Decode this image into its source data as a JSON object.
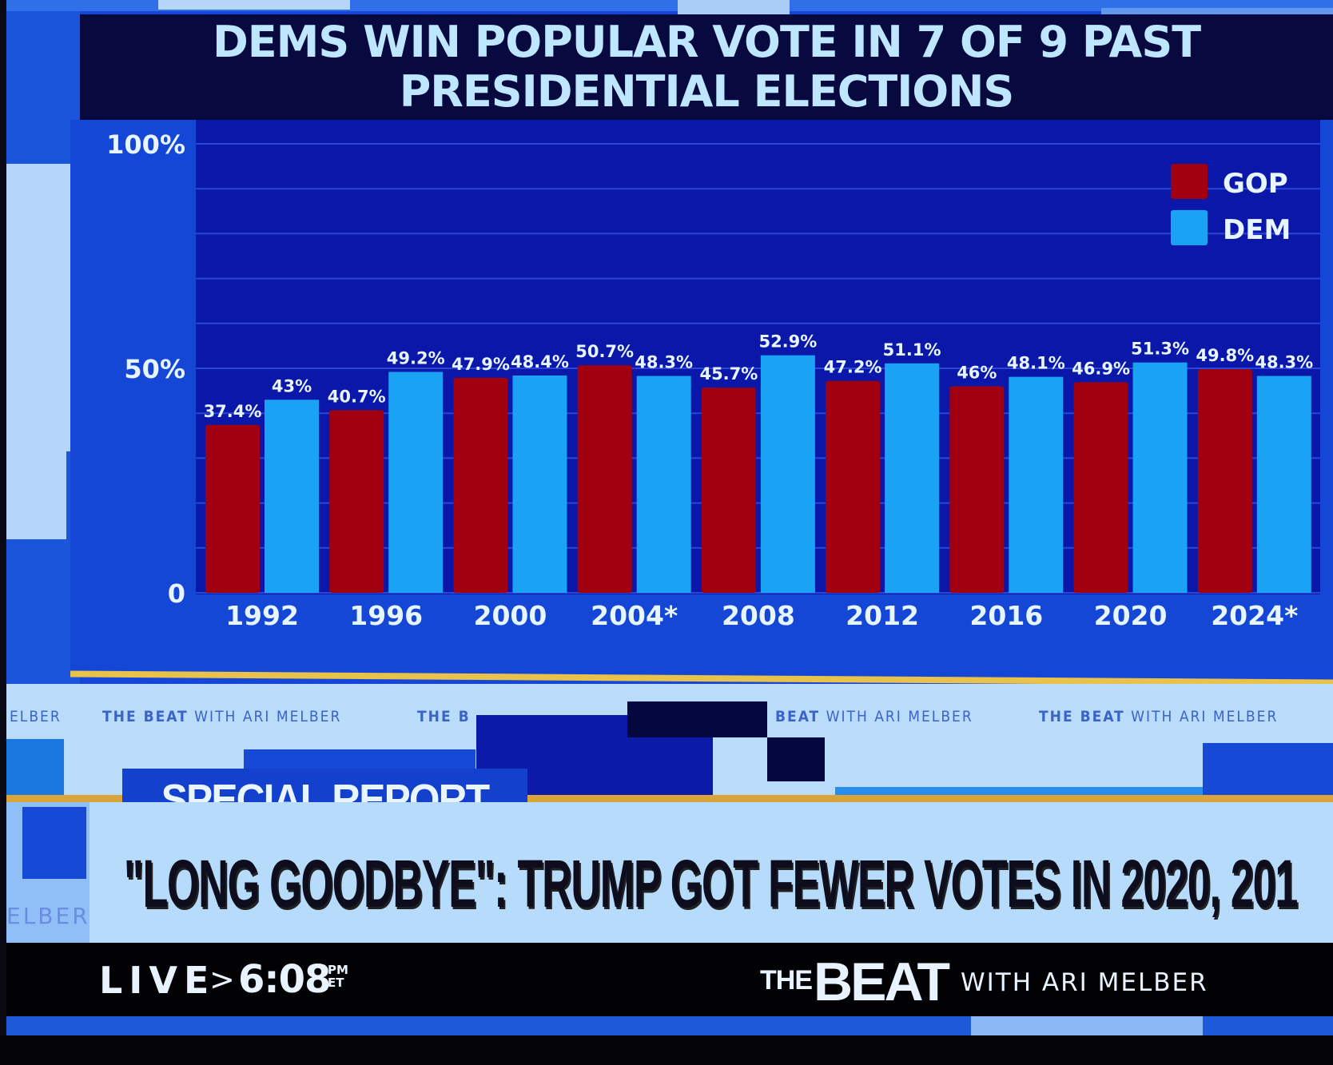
{
  "chart_data": {
    "type": "bar",
    "title": "DEMS WIN POPULAR VOTE IN 7 OF 9 PAST PRESIDENTIAL ELECTIONS",
    "title_lines": [
      "DEMS WIN POPULAR VOTE IN 7 OF 9 PAST",
      "PRESIDENTIAL ELECTIONS"
    ],
    "categories": [
      "1992",
      "1996",
      "2000",
      "2004*",
      "2008",
      "2012",
      "2016",
      "2020",
      "2024*"
    ],
    "series": [
      {
        "name": "GOP",
        "color": "#a0000f",
        "values": [
          37.4,
          40.7,
          47.9,
          50.7,
          45.7,
          47.2,
          46,
          46.9,
          49.8
        ],
        "labels": [
          "37.4%",
          "40.7%",
          "47.9%",
          "50.7%",
          "45.7%",
          "47.2%",
          "46%",
          "46.9%",
          "49.8%"
        ]
      },
      {
        "name": "DEM",
        "color": "#1aa3f5",
        "values": [
          43,
          49.2,
          48.4,
          48.3,
          52.9,
          51.1,
          48.1,
          51.3,
          48.3
        ],
        "labels": [
          "43%",
          "49.2%",
          "48.4%",
          "48.3%",
          "52.9%",
          "51.1%",
          "48.1%",
          "51.3%",
          "48.3%"
        ]
      }
    ],
    "xlabel": "",
    "ylabel": "",
    "ylim": [
      0,
      100
    ],
    "yticks": [
      0,
      50,
      100
    ],
    "ytick_labels": [
      "0",
      "50%",
      "100%"
    ],
    "grid": true,
    "legend": {
      "position": "top-right",
      "entries": [
        "GOP",
        "DEM"
      ]
    }
  },
  "ticker": {
    "items": [
      "ELBER",
      "THE BEAT",
      "WITH ARI MELBER",
      "THE B",
      "BEAT",
      "WITH ARI MELBER",
      "THE BEAT",
      "WITH ARI MELBER"
    ],
    "left_fragment": "ELBER"
  },
  "lower_third": {
    "badge": "SPECIAL REPORT",
    "headline": "\"LONG GOODBYE\": TRUMP GOT FEWER VOTES IN 2020, 201"
  },
  "footer": {
    "live": "LIVE",
    "arrow": ">",
    "time": "6:08",
    "ampm": "PM",
    "tz": "ET",
    "show_the": "THE",
    "show_beat": "BEAT",
    "show_with": "WITH ARI MELBER"
  },
  "colors": {
    "gop": "#a0000f",
    "dem": "#1aa3f5",
    "plot_bg": "#0a17a8",
    "panel_bg": "#1447d6",
    "accent_yellow": "#e8c24a"
  }
}
